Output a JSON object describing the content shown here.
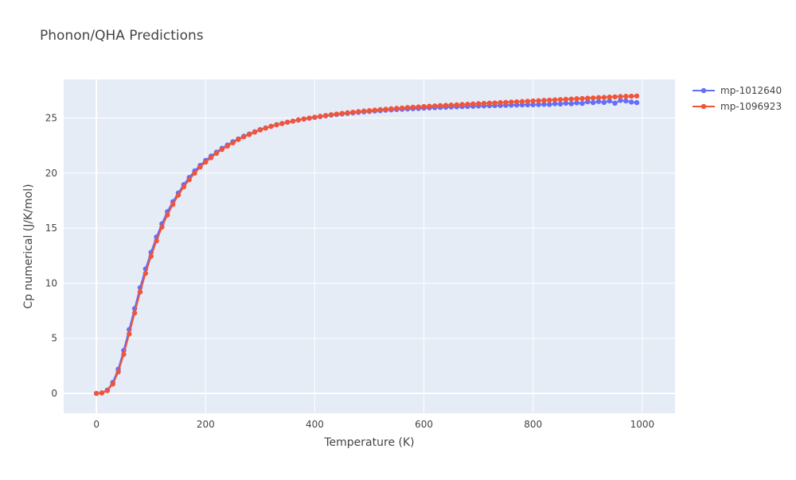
{
  "chart_data": {
    "type": "line",
    "title": "Phonon/QHA Predictions",
    "xlabel": "Temperature (K)",
    "ylabel": "Cp numerical (J/K/mol)",
    "xlim": [
      -60,
      1060
    ],
    "ylim": [
      -1.8,
      28.5
    ],
    "xticks": [
      0,
      200,
      400,
      600,
      800,
      1000
    ],
    "xtick_labels": [
      "0",
      "200",
      "400",
      "600",
      "800",
      "1000"
    ],
    "yticks": [
      0,
      5,
      10,
      15,
      20,
      25
    ],
    "ytick_labels": [
      "0",
      "5",
      "10",
      "15",
      "20",
      "25"
    ],
    "grid": true,
    "legend_position": "top-right",
    "x": [
      0,
      10,
      20,
      30,
      40,
      50,
      60,
      70,
      80,
      90,
      100,
      110,
      120,
      130,
      140,
      150,
      160,
      170,
      180,
      190,
      200,
      210,
      220,
      230,
      240,
      250,
      260,
      270,
      280,
      290,
      300,
      310,
      320,
      330,
      340,
      350,
      360,
      370,
      380,
      390,
      400,
      410,
      420,
      430,
      440,
      450,
      460,
      470,
      480,
      490,
      500,
      510,
      520,
      530,
      540,
      550,
      560,
      570,
      580,
      590,
      600,
      610,
      620,
      630,
      640,
      650,
      660,
      670,
      680,
      690,
      700,
      710,
      720,
      730,
      740,
      750,
      760,
      770,
      780,
      790,
      800,
      810,
      820,
      830,
      840,
      850,
      860,
      870,
      880,
      890,
      900,
      910,
      920,
      930,
      940,
      950,
      960,
      970,
      980,
      990
    ],
    "series": [
      {
        "name": "mp-1012640",
        "color": "#636efa",
        "values": [
          0.0,
          0.05,
          0.3,
          1.0,
          2.2,
          3.9,
          5.8,
          7.7,
          9.6,
          11.3,
          12.8,
          14.2,
          15.4,
          16.5,
          17.4,
          18.2,
          18.95,
          19.6,
          20.2,
          20.7,
          21.15,
          21.55,
          21.9,
          22.25,
          22.55,
          22.85,
          23.1,
          23.35,
          23.55,
          23.75,
          23.95,
          24.1,
          24.25,
          24.4,
          24.5,
          24.62,
          24.72,
          24.82,
          24.9,
          24.98,
          25.06,
          25.13,
          25.2,
          25.26,
          25.32,
          25.37,
          25.42,
          25.47,
          25.52,
          25.56,
          25.6,
          25.64,
          25.67,
          25.71,
          25.74,
          25.77,
          25.8,
          25.82,
          25.85,
          25.87,
          25.9,
          25.92,
          25.94,
          25.96,
          25.98,
          26.0,
          26.02,
          26.04,
          26.05,
          26.07,
          26.09,
          26.1,
          26.12,
          26.13,
          26.14,
          26.16,
          26.17,
          26.18,
          26.19,
          26.2,
          26.21,
          26.22,
          26.25,
          26.23,
          26.3,
          26.27,
          26.35,
          26.3,
          26.38,
          26.33,
          26.48,
          26.4,
          26.5,
          26.42,
          26.55,
          26.35,
          26.6,
          26.55,
          26.45,
          26.4
        ]
      },
      {
        "name": "mp-1096923",
        "color": "#ef553b",
        "values": [
          0.0,
          0.04,
          0.25,
          0.85,
          1.95,
          3.55,
          5.4,
          7.3,
          9.2,
          10.9,
          12.45,
          13.85,
          15.1,
          16.2,
          17.15,
          18.0,
          18.75,
          19.4,
          20.0,
          20.55,
          21.0,
          21.4,
          21.8,
          22.15,
          22.45,
          22.75,
          23.05,
          23.3,
          23.5,
          23.72,
          23.92,
          24.08,
          24.24,
          24.38,
          24.5,
          24.62,
          24.72,
          24.82,
          24.91,
          25.0,
          25.08,
          25.16,
          25.23,
          25.3,
          25.36,
          25.42,
          25.48,
          25.53,
          25.58,
          25.63,
          25.67,
          25.72,
          25.76,
          25.8,
          25.84,
          25.88,
          25.91,
          25.95,
          25.98,
          26.01,
          26.04,
          26.07,
          26.1,
          26.13,
          26.15,
          26.18,
          26.2,
          26.23,
          26.25,
          26.28,
          26.3,
          26.33,
          26.35,
          26.37,
          26.4,
          26.42,
          26.45,
          26.47,
          26.5,
          26.52,
          26.55,
          26.57,
          26.6,
          26.62,
          26.65,
          26.67,
          26.7,
          26.72,
          26.75,
          26.77,
          26.8,
          26.82,
          26.85,
          26.87,
          26.9,
          26.92,
          26.95,
          26.97,
          26.98,
          27.0
        ]
      }
    ]
  }
}
